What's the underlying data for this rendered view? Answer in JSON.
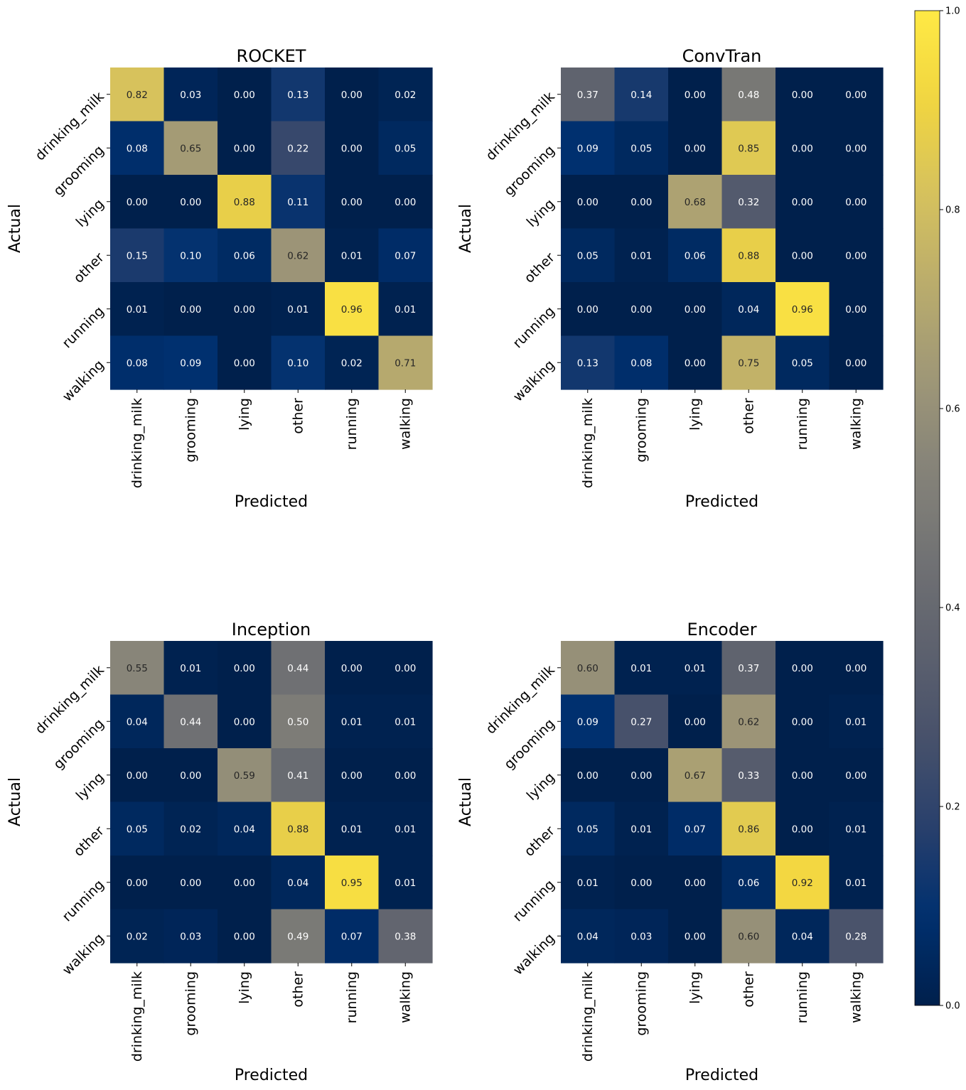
{
  "chart_data": [
    {
      "type": "heatmap",
      "title": "ROCKET",
      "xlabel": "Predicted",
      "ylabel": "Actual",
      "x_categories": [
        "drinking_milk",
        "grooming",
        "lying",
        "other",
        "running",
        "walking"
      ],
      "y_categories": [
        "drinking_milk",
        "grooming",
        "lying",
        "other",
        "running",
        "walking"
      ],
      "values": [
        [
          0.82,
          0.03,
          0.0,
          0.13,
          0.0,
          0.02
        ],
        [
          0.08,
          0.65,
          0.0,
          0.22,
          0.0,
          0.05
        ],
        [
          0.0,
          0.0,
          0.88,
          0.11,
          0.0,
          0.0
        ],
        [
          0.15,
          0.1,
          0.06,
          0.62,
          0.01,
          0.07
        ],
        [
          0.01,
          0.0,
          0.0,
          0.01,
          0.96,
          0.01
        ],
        [
          0.08,
          0.09,
          0.0,
          0.1,
          0.02,
          0.71
        ]
      ]
    },
    {
      "type": "heatmap",
      "title": "ConvTran",
      "xlabel": "Predicted",
      "ylabel": "Actual",
      "x_categories": [
        "drinking_milk",
        "grooming",
        "lying",
        "other",
        "running",
        "walking"
      ],
      "y_categories": [
        "drinking_milk",
        "grooming",
        "lying",
        "other",
        "running",
        "walking"
      ],
      "values": [
        [
          0.37,
          0.14,
          0.0,
          0.48,
          0.0,
          0.0
        ],
        [
          0.09,
          0.05,
          0.0,
          0.85,
          0.0,
          0.0
        ],
        [
          0.0,
          0.0,
          0.68,
          0.32,
          0.0,
          0.0
        ],
        [
          0.05,
          0.01,
          0.06,
          0.88,
          0.0,
          0.0
        ],
        [
          0.0,
          0.0,
          0.0,
          0.04,
          0.96,
          0.0
        ],
        [
          0.13,
          0.08,
          0.0,
          0.75,
          0.05,
          0.0
        ]
      ]
    },
    {
      "type": "heatmap",
      "title": "Inception",
      "xlabel": "Predicted",
      "ylabel": "Actual",
      "x_categories": [
        "drinking_milk",
        "grooming",
        "lying",
        "other",
        "running",
        "walking"
      ],
      "y_categories": [
        "drinking_milk",
        "grooming",
        "lying",
        "other",
        "running",
        "walking"
      ],
      "values": [
        [
          0.55,
          0.01,
          0.0,
          0.44,
          0.0,
          0.0
        ],
        [
          0.04,
          0.44,
          0.0,
          0.5,
          0.01,
          0.01
        ],
        [
          0.0,
          0.0,
          0.59,
          0.41,
          0.0,
          0.0
        ],
        [
          0.05,
          0.02,
          0.04,
          0.88,
          0.01,
          0.01
        ],
        [
          0.0,
          0.0,
          0.0,
          0.04,
          0.95,
          0.01
        ],
        [
          0.02,
          0.03,
          0.0,
          0.49,
          0.07,
          0.38
        ]
      ]
    },
    {
      "type": "heatmap",
      "title": "Encoder",
      "xlabel": "Predicted",
      "ylabel": "Actual",
      "x_categories": [
        "drinking_milk",
        "grooming",
        "lying",
        "other",
        "running",
        "walking"
      ],
      "y_categories": [
        "drinking_milk",
        "grooming",
        "lying",
        "other",
        "running",
        "walking"
      ],
      "values": [
        [
          0.6,
          0.01,
          0.01,
          0.37,
          0.0,
          0.0
        ],
        [
          0.09,
          0.27,
          0.0,
          0.62,
          0.0,
          0.01
        ],
        [
          0.0,
          0.0,
          0.67,
          0.33,
          0.0,
          0.0
        ],
        [
          0.05,
          0.01,
          0.07,
          0.86,
          0.0,
          0.01
        ],
        [
          0.01,
          0.0,
          0.0,
          0.06,
          0.92,
          0.01
        ],
        [
          0.04,
          0.03,
          0.0,
          0.6,
          0.04,
          0.28
        ]
      ]
    }
  ],
  "colorbar": {
    "colormap": "cividis",
    "range": [
      0.0,
      1.0
    ],
    "ticks": [
      "0.0",
      "0.2",
      "0.4",
      "0.6",
      "0.8",
      "1.0"
    ],
    "tick_values": [
      0.0,
      0.2,
      0.4,
      0.6,
      0.8,
      1.0
    ],
    "stops": [
      "#00204c",
      "#00306f",
      "#2a406c",
      "#48526b",
      "#5e626e",
      "#727374",
      "#878479",
      "#a09877",
      "#bbad6c",
      "#d6c25d",
      "#f1d540",
      "#ffe945"
    ]
  }
}
